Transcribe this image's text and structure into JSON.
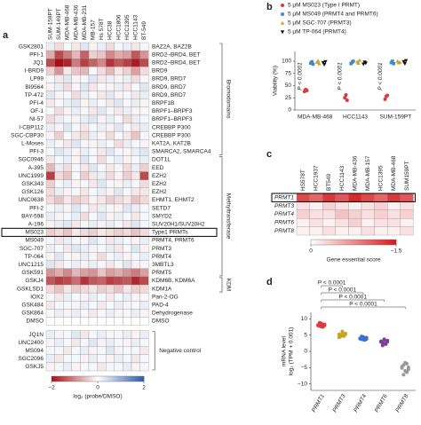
{
  "chart_data": [
    {
      "panel": "a",
      "type": "heatmap",
      "columns": [
        "SUM-159PT",
        "SUM-149PT",
        "MDA-MB-468",
        "MDA-MB-436",
        "MDA-MB-231",
        "MB-157",
        "Hs 578T",
        "HCC38",
        "HCC1806",
        "HCC1395",
        "HCC1143",
        "BT-549"
      ],
      "sections": [
        {
          "label": "Bromodomains",
          "rows": [
            "GSK2801",
            "PFI-1",
            "JQ1",
            "I-BRD9",
            "LP99",
            "BI9564",
            "TP-472",
            "PFI-4",
            "OF-1",
            "NI-57",
            "I-CBP112",
            "SGC-CBP30",
            "L-Moses",
            "PFI-3"
          ],
          "targets": [
            "BAZ2A, BAZ2B",
            "BRD2–BRD4, BET",
            "BRD2–BRD4, BET",
            "BRD9",
            "BRD9, BRD7",
            "BRD9, BRD7",
            "BRD9, BRD7",
            "BRPF1B",
            "BRPF1–BRPF3",
            "BRPF1–BRPF3",
            "CREBBP P300",
            "CREBBP P300",
            "KAT2A, KAT2B",
            "SMARCA2, SMARCA4"
          ],
          "values": [
            [
              0.2,
              -0.3,
              0.1,
              -0.2,
              0.3,
              -0.1,
              0.2,
              -0.3,
              0.1,
              0.2,
              -0.2,
              0.1
            ],
            [
              -0.7,
              -1.5,
              -1.1,
              -0.6,
              -1.3,
              -0.4,
              -0.5,
              -1.0,
              -0.7,
              -0.8,
              -1.4,
              -0.9
            ],
            [
              -1.5,
              -2,
              -1.8,
              -1.1,
              -1.6,
              -1.3,
              -1.0,
              -1.7,
              -1.4,
              -1.6,
              -1.9,
              -1.5
            ],
            [
              -0.4,
              -0.9,
              -0.2,
              -0.5,
              -0.6,
              0.1,
              -0.3,
              -0.6,
              -0.2,
              -0.4,
              -0.8,
              -0.3
            ],
            [
              0.1,
              -0.2,
              0.3,
              -0.1,
              0.1,
              0.3,
              -0.2,
              0.2,
              -0.1,
              0.2,
              -0.3,
              0.1
            ],
            [
              -0.1,
              0.2,
              -0.3,
              0.1,
              0.3,
              -0.2,
              0.1,
              -0.1,
              0.2,
              -0.2,
              0.1,
              0.3
            ],
            [
              0.3,
              -0.1,
              0.1,
              -0.3,
              0.2,
              0.1,
              -0.2,
              0.3,
              -0.1,
              0.1,
              -0.2,
              0.2
            ],
            [
              -0.2,
              0.1,
              0.2,
              0.3,
              -0.1,
              0.2,
              0.1,
              -0.2,
              0.3,
              0.1,
              0.2,
              -0.1
            ],
            [
              0.1,
              -0.3,
              -0.1,
              0.2,
              0.1,
              -0.2,
              0.3,
              0.1,
              -0.2,
              0.2,
              -0.1,
              0.1
            ],
            [
              -0.3,
              0.2,
              0.1,
              -0.1,
              0.2,
              0.3,
              -0.1,
              0.2,
              0.1,
              -0.3,
              0.2,
              0.1
            ],
            [
              0.2,
              -0.1,
              0.3,
              0.1,
              -0.2,
              0.1,
              0.2,
              -0.1,
              0.3,
              0.1,
              -0.2,
              0.2
            ],
            [
              -0.1,
              -0.4,
              0.1,
              -0.2,
              -0.3,
              0.2,
              -0.1,
              -0.3,
              0.1,
              -0.2,
              -0.5,
              0.1
            ],
            [
              0.2,
              0.1,
              -0.2,
              0.3,
              0.1,
              -0.1,
              0.2,
              0.1,
              -0.3,
              0.2,
              0.1,
              -0.1
            ],
            [
              0.1,
              0.3,
              0.2,
              -0.1,
              0.2,
              0.1,
              -0.2,
              0.3,
              0.1,
              -0.1,
              0.2,
              0.3
            ]
          ]
        },
        {
          "label": "Methyltransferase",
          "rows": [
            "SGC0946",
            "A-395",
            "UNC1999",
            "GSK343",
            "GSK126",
            "UNC0638",
            "PFI-2",
            "BAY-598",
            "A-196",
            "MS023",
            "MS049",
            "SGC-707",
            "TP-064",
            "UNC1215",
            "GSK591"
          ],
          "targets": [
            "DOT1L",
            "EED",
            "EZH2",
            "EZH2",
            "EZH2",
            "EHMT1, EHMT2",
            "SETD7",
            "SMYD2",
            "SUV20H1/SUV20H2",
            "Type1 PRMTs",
            "PRMT4, PRMT6",
            "PRMT3",
            "PRMT4",
            "3MBTL3",
            "PRMT5"
          ],
          "values": [
            [
              -0.2,
              0.1,
              0.2,
              -0.1,
              0.3,
              0.1,
              -0.3,
              0.1,
              0.2,
              -0.1,
              0.1,
              0.2
            ],
            [
              -0.6,
              0.2,
              -0.3,
              0.1,
              -0.2,
              0.3,
              0.1,
              -0.2,
              0.1,
              -0.3,
              0.2,
              -0.4
            ],
            [
              -1.6,
              -0.3,
              -0.5,
              0.1,
              -0.4,
              -0.2,
              0.2,
              -0.3,
              -0.1,
              -0.4,
              -0.2,
              -1.5
            ],
            [
              -0.4,
              0.1,
              0.2,
              -0.1,
              0.1,
              -0.2,
              0.3,
              0.1,
              -0.1,
              0.2,
              0.1,
              -0.3
            ],
            [
              -0.3,
              0.2,
              -0.1,
              0.1,
              -0.2,
              0.1,
              0.2,
              -0.1,
              0.3,
              0.1,
              -0.2,
              -0.2
            ],
            [
              -0.3,
              -0.5,
              -0.2,
              -0.4,
              -0.3,
              -0.1,
              -0.2,
              -0.4,
              -0.3,
              -0.2,
              -0.5,
              -0.3
            ],
            [
              0.1,
              0.2,
              -0.1,
              0.3,
              0.1,
              -0.2,
              0.2,
              0.1,
              -0.1,
              0.3,
              0.2,
              0.1
            ],
            [
              0.2,
              -0.1,
              0.1,
              0.2,
              -0.3,
              0.1,
              0.3,
              -0.1,
              0.2,
              0.1,
              -0.2,
              0.1
            ],
            [
              -0.1,
              0.2,
              0.3,
              -0.2,
              0.1,
              0.2,
              -0.1,
              0.2,
              0.1,
              -0.2,
              0.3,
              0.1
            ],
            [
              -0.4,
              -0.3,
              -0.5,
              -0.2,
              -0.3,
              -0.4,
              -0.2,
              -0.3,
              -0.4,
              -0.3,
              -0.5,
              -0.3
            ],
            [
              0.1,
              -0.2,
              0.2,
              0.1,
              -0.1,
              0.3,
              0.1,
              -0.2,
              0.2,
              0.1,
              -0.1,
              0.2
            ],
            [
              0.2,
              0.1,
              -0.2,
              0.3,
              0.2,
              -0.1,
              0.1,
              0.2,
              -0.2,
              0.1,
              0.3,
              -0.1
            ],
            [
              -0.1,
              0.3,
              0.1,
              -0.1,
              0.2,
              0.1,
              -0.3,
              0.1,
              0.2,
              -0.1,
              0.1,
              0.2
            ],
            [
              0.3,
              -0.2,
              0.1,
              0.2,
              -0.1,
              0.2,
              0.1,
              -0.2,
              0.1,
              0.3,
              -0.1,
              0.1
            ],
            [
              -0.9,
              -0.7,
              -1.0,
              -0.6,
              -0.8,
              -0.9,
              -0.5,
              -0.8,
              -0.7,
              -0.9,
              -1.1,
              -0.8
            ]
          ]
        },
        {
          "label": "KDM",
          "rows": [
            "GSKJ4",
            "GSKLSD1"
          ],
          "targets": [
            "KDM6B, KDM6A",
            "KDM1A"
          ],
          "values": [
            [
              -1.4,
              -1.6,
              -1.5,
              -1.2,
              -1.7,
              -1.4,
              -1.3,
              -1.6,
              -1.5,
              -1.4,
              -1.8,
              -1.5
            ],
            [
              -0.3,
              -0.5,
              -0.2,
              -0.4,
              -0.3,
              -0.2,
              -0.4,
              -0.3,
              -0.5,
              -0.2,
              -0.4,
              -0.3
            ]
          ]
        },
        {
          "rows": [
            "IOX2",
            "GSK484",
            "GSK864",
            "DMSO"
          ],
          "targets": [
            "Pan-2-OG",
            "PAD-4",
            "Dehydrogenase",
            "DMSO"
          ],
          "values": [
            [
              0.1,
              -0.2,
              0.2,
              0.1,
              -0.1,
              0.2,
              0.1,
              -0.2,
              0.1,
              0.2,
              -0.1,
              0.1
            ],
            [
              -0.2,
              0.1,
              0.1,
              -0.1,
              0.2,
              0.1,
              -0.2,
              0.1,
              0.2,
              -0.1,
              0.1,
              0.2
            ],
            [
              0.1,
              0.2,
              -0.1,
              0.2,
              0.1,
              -0.2,
              0.1,
              0.2,
              -0.1,
              0.1,
              0.2,
              -0.1
            ],
            [
              0,
              0,
              0,
              0,
              0,
              0,
              0,
              0,
              0,
              0,
              0,
              0
            ]
          ]
        },
        {
          "label": "Negative control",
          "rows": [
            "JQ1N",
            "UNC2400",
            "MS094",
            "SGC2096",
            "GSKJ5"
          ],
          "values": [
            [
              0.2,
              -0.1,
              0.1,
              0.3,
              -0.2,
              0.1,
              0.2,
              -0.1,
              0.1,
              0.2,
              -0.1,
              0.2
            ],
            [
              -0.1,
              0.2,
              0.1,
              -0.2,
              0.1,
              0.3,
              -0.1,
              0.2,
              0.1,
              -0.1,
              0.2,
              0.1
            ],
            [
              0.1,
              0.1,
              -0.2,
              0.1,
              0.2,
              -0.1,
              0.1,
              0.3,
              -0.1,
              0.1,
              0.1,
              -0.2
            ],
            [
              0.2,
              -0.2,
              0.1,
              0.1,
              -0.1,
              0.2,
              0.1,
              -0.1,
              0.2,
              0.1,
              -0.2,
              0.1
            ],
            [
              -0.1,
              0.1,
              0.2,
              -0.1,
              0.1,
              0.1,
              -0.2,
              0.1,
              0.1,
              0.2,
              -0.1,
              0.1
            ]
          ]
        }
      ],
      "colorbar": {
        "lim": [
          -2,
          2
        ],
        "colors": [
          "#a50f15",
          "#ffffff",
          "#2b5cab"
        ],
        "ticks": [
          {
            "value": -2,
            "label": "−2"
          },
          0,
          2
        ],
        "label": "log₂ (probe/DMSO)"
      }
    },
    {
      "panel": "b",
      "type": "strip",
      "ylabel": "Viability (%)",
      "categories": [
        "MDA-MB-468",
        "HCC1143",
        "SUM-159PT"
      ],
      "ylim": [
        0,
        120
      ],
      "yticks": [
        0,
        25,
        50,
        75,
        100
      ],
      "series": [
        {
          "name": "5 μM MS023 (Type I PRMT)",
          "color": "#e0383c",
          "marker": "circle",
          "values": [
            [
              38,
              42,
              40
            ],
            [
              25,
              31,
              20
            ],
            [
              22,
              28,
              30
            ]
          ]
        },
        {
          "name": "5 μM MS049 (PRMT4 and PRMT6)",
          "color": "#3f86cc",
          "marker": "square",
          "values": [
            [
              96,
              99,
              94
            ],
            [
              95,
              98,
              100
            ],
            [
              97,
              100,
              95
            ]
          ]
        },
        {
          "name": "5 μM SGC-707 (PRMT3)",
          "color": "#c9a227",
          "marker": "triangle-up",
          "values": [
            [
              98,
              101,
              95
            ],
            [
              99,
              96,
              102
            ],
            [
              100,
              97,
              98
            ]
          ]
        },
        {
          "name": "5 μM TP-064 (PRMT4)",
          "color": "#111111",
          "marker": "triangle-down",
          "values": [
            [
              97,
              93,
              99
            ],
            [
              94,
              98,
              96
            ],
            [
              99,
              95,
              101
            ]
          ]
        }
      ],
      "annotations": [
        "P < 0.0001",
        "P < 0.0001",
        "P < 0.0001"
      ]
    },
    {
      "panel": "c",
      "type": "heatmap",
      "columns": [
        "HS578T",
        "HCC1937",
        "BT549",
        "HCC1143",
        "MDA-MB-436",
        "MDA-MB-157",
        "HCC1395",
        "MDA-MB-468",
        "SUM159PT"
      ],
      "sections": [
        {
          "rows": [
            "PRMT1",
            "PRMT3",
            "PRMT4",
            "PRMT6",
            "PRMT8"
          ],
          "values": [
            [
              -1.2,
              -1.0,
              -1.3,
              -1.1,
              -1.4,
              -1.2,
              -1.0,
              -1.3,
              -1.1
            ],
            [
              -0.2,
              -0.1,
              -0.3,
              -0.2,
              -0.1,
              -0.2,
              -0.3,
              -0.1,
              -0.2
            ],
            [
              -0.3,
              -0.2,
              -0.2,
              -0.4,
              -0.3,
              -0.2,
              -0.3,
              -0.2,
              -0.3
            ],
            [
              -0.1,
              -0.2,
              -0.1,
              -0.2,
              -0.3,
              -0.1,
              -0.2,
              -0.2,
              -0.1
            ],
            [
              -0.1,
              -0.1,
              -0.2,
              -0.1,
              -0.1,
              -0.2,
              -0.1,
              -0.1,
              -0.2
            ]
          ]
        }
      ],
      "colorbar": {
        "lim": [
          0,
          -1.5
        ],
        "colors": [
          "#ffffff",
          "#d7191c"
        ],
        "ticks": [
          0,
          {
            "value": -1.5,
            "label": "−1.5"
          }
        ],
        "label": "Gene essential score"
      }
    },
    {
      "panel": "d",
      "type": "strip",
      "ylabel": [
        "mRNA level",
        "log₂ (TPM + 0.001)"
      ],
      "categories": [
        "PRMT1",
        "PRMT3",
        "PRMT4",
        "PRMT6",
        "PRMT8"
      ],
      "colors": [
        "#e0383c",
        "#c9a227",
        "#3f6fcc",
        "#7b3f98",
        "#999999"
      ],
      "ylim": [
        -12,
        12
      ],
      "yticks": [
        {
          "value": -10,
          "label": "−10"
        },
        {
          "value": -5,
          "label": "−5"
        },
        0,
        5,
        10
      ],
      "values": [
        [
          8.1,
          7.8,
          8.6,
          7.5,
          8.3,
          7.9,
          8.8,
          7.6,
          8.2,
          8.0
        ],
        [
          5.2,
          4.6,
          5.8,
          4.9,
          5.5,
          4.3,
          5.0,
          6.1,
          4.7,
          5.3
        ],
        [
          4.0,
          3.7,
          4.4,
          3.5,
          4.2,
          3.9,
          4.6,
          3.6,
          4.1,
          3.8
        ],
        [
          3.1,
          2.6,
          3.5,
          2.2,
          3.3,
          2.9,
          1.8,
          3.7,
          2.5,
          3.0
        ],
        [
          -5.1,
          -4.2,
          -6.0,
          -3.8,
          -5.6,
          -4.7,
          -7.2,
          -3.5,
          -6.4,
          -4.9
        ]
      ],
      "annotations": [
        "P < 0.0001",
        "P < 0.0001",
        "P < 0.0001",
        "P < 0.0001"
      ]
    }
  ]
}
